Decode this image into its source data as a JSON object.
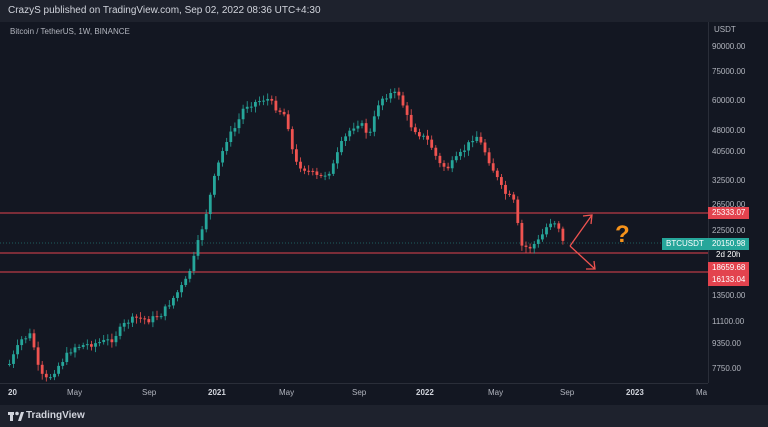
{
  "header": {
    "publish_text": "CrazyS published on TradingView.com, Sep 02, 2022 08:36 UTC+4:30"
  },
  "chart": {
    "pair_label": "Bitcoin / TetherUS, 1W, BINANCE",
    "price_axis_title": "USDT",
    "price_ticks": [
      "90000.00",
      "75000.00",
      "60000.00",
      "48000.00",
      "40500.00",
      "32500.00",
      "26500.00",
      "22500.00",
      "13500.00",
      "11100.00",
      "9350.00",
      "7750.00"
    ],
    "time_ticks": [
      {
        "label": "20",
        "bold": true
      },
      {
        "label": "May",
        "bold": false
      },
      {
        "label": "Sep",
        "bold": false
      },
      {
        "label": "2021",
        "bold": true
      },
      {
        "label": "May",
        "bold": false
      },
      {
        "label": "Sep",
        "bold": false
      },
      {
        "label": "2022",
        "bold": true
      },
      {
        "label": "May",
        "bold": false
      },
      {
        "label": "Sep",
        "bold": false
      },
      {
        "label": "2023",
        "bold": true
      },
      {
        "label": "Ma",
        "bold": false
      }
    ],
    "levels": [
      {
        "label": "25333.07",
        "color": "#e3434e"
      },
      {
        "label": "18659.68",
        "color": "#e3434e"
      },
      {
        "label": "16133.04",
        "color": "#e3434e"
      }
    ],
    "current_price": "20150.98",
    "symbol_tag": "BTCUSDT",
    "timer": "2d 20h",
    "annotation": "?",
    "colors": {
      "up": "#26a69a",
      "down": "#ef5350",
      "level": "#e3434e",
      "background": "#131722",
      "accent": "#f7931a"
    }
  },
  "footer": {
    "brand": "TradingView",
    "logo_icon": "tradingview-logo-icon"
  }
}
